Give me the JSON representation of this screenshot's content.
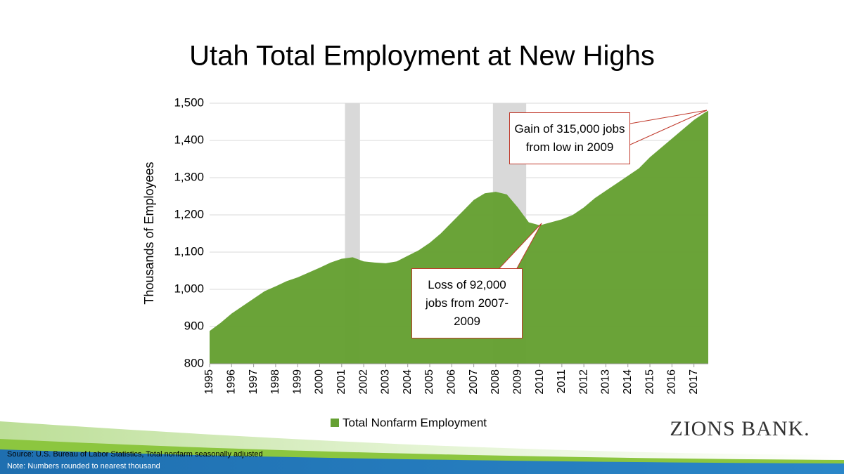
{
  "chart_data": {
    "type": "area",
    "title": "Utah Total Employment at New Highs",
    "y_label": "Thousands of Employees",
    "x": [
      1995.0,
      1995.5,
      1996.0,
      1996.5,
      1997.0,
      1997.5,
      1998.0,
      1998.5,
      1999.0,
      1999.5,
      2000.0,
      2000.5,
      2001.0,
      2001.5,
      2002.0,
      2002.5,
      2003.0,
      2003.5,
      2004.0,
      2004.5,
      2005.0,
      2005.5,
      2006.0,
      2006.5,
      2007.0,
      2007.5,
      2008.0,
      2008.5,
      2009.0,
      2009.5,
      2010.0,
      2010.5,
      2011.0,
      2011.5,
      2012.0,
      2012.5,
      2013.0,
      2013.5,
      2014.0,
      2014.5,
      2015.0,
      2015.5,
      2016.0,
      2016.5,
      2017.0,
      2017.5,
      2017.65
    ],
    "series": [
      {
        "name": "Total Nonfarm Employment",
        "color": "#65a032",
        "values": [
          888,
          910,
          935,
          955,
          975,
          995,
          1008,
          1022,
          1032,
          1045,
          1058,
          1072,
          1082,
          1086,
          1075,
          1072,
          1070,
          1075,
          1090,
          1105,
          1125,
          1150,
          1180,
          1210,
          1240,
          1258,
          1262,
          1255,
          1220,
          1180,
          1172,
          1180,
          1188,
          1200,
          1220,
          1245,
          1265,
          1285,
          1305,
          1325,
          1355,
          1380,
          1405,
          1430,
          1455,
          1475,
          1480
        ]
      }
    ],
    "shaded_ranges": [
      [
        2001.15,
        2001.83
      ],
      [
        2007.87,
        2009.38
      ]
    ],
    "shade_color": "#d9d9d9",
    "xlim": [
      1995,
      2017.65
    ],
    "xticks": [
      1995,
      1996,
      1997,
      1998,
      1999,
      2000,
      2001,
      2002,
      2003,
      2004,
      2005,
      2006,
      2007,
      2008,
      2009,
      2010,
      2011,
      2012,
      2013,
      2014,
      2015,
      2016,
      2017
    ],
    "ylim": [
      800,
      1500
    ],
    "yticks": [
      {
        "value": 800,
        "label": "800"
      },
      {
        "value": 900,
        "label": "900"
      },
      {
        "value": 1000,
        "label": "1,000"
      },
      {
        "value": 1100,
        "label": "1,100"
      },
      {
        "value": 1200,
        "label": "1,200"
      },
      {
        "value": 1300,
        "label": "1,300"
      },
      {
        "value": 1400,
        "label": "1,400"
      },
      {
        "value": 1500,
        "label": "1,500"
      }
    ],
    "grid": true,
    "legend": "bottom",
    "annotations": [
      "Gain of 315,000 jobs from low in 2009",
      "Loss of 92,000 jobs from 2007-2009"
    ]
  },
  "footer": {
    "source": "Source: U.S. Bureau of Labor Statistics, Total nonfarm seasonally adjusted",
    "note": "Note: Numbers rounded to nearest thousand",
    "logo": "ZIONS BANK."
  }
}
